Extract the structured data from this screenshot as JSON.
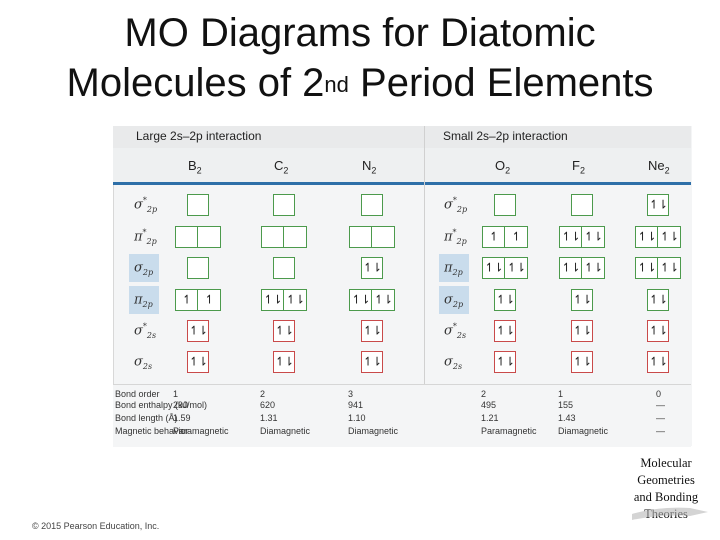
{
  "title": {
    "line1": "MO Diagrams for Diatomic",
    "line2_pre": "Molecules of 2",
    "line2_sup": "nd",
    "line2_post": " Period Elements"
  },
  "sections": {
    "large": "Large 2s–2p interaction",
    "small": "Small 2s–2p interaction"
  },
  "molecules": [
    {
      "base": "B",
      "sub": "2"
    },
    {
      "base": "C",
      "sub": "2"
    },
    {
      "base": "N",
      "sub": "2"
    },
    {
      "base": "O",
      "sub": "2"
    },
    {
      "base": "F",
      "sub": "2"
    },
    {
      "base": "Ne",
      "sub": "2"
    }
  ],
  "orbitals_left": [
    {
      "sym": "σ",
      "star": "*",
      "sub": "2p"
    },
    {
      "sym": "π",
      "star": "*",
      "sub": "2p"
    },
    {
      "sym": "σ",
      "star": "",
      "sub": "2p"
    },
    {
      "sym": "π",
      "star": "",
      "sub": "2p"
    },
    {
      "sym": "σ",
      "star": "*",
      "sub": "2s"
    },
    {
      "sym": "σ",
      "star": "",
      "sub": "2s"
    }
  ],
  "orbitals_right": [
    {
      "sym": "σ",
      "star": "*",
      "sub": "2p"
    },
    {
      "sym": "π",
      "star": "*",
      "sub": "2p"
    },
    {
      "sym": "π",
      "star": "",
      "sub": "2p"
    },
    {
      "sym": "σ",
      "star": "",
      "sub": "2p"
    },
    {
      "sym": "σ",
      "star": "*",
      "sub": "2s"
    },
    {
      "sym": "σ",
      "star": "",
      "sub": "2s"
    }
  ],
  "occupancy": {
    "B2": [
      "",
      [
        "",
        ""
      ],
      "",
      [
        "↿",
        "↿"
      ],
      "↿⇂",
      "↿⇂"
    ],
    "C2": [
      "",
      [
        "",
        ""
      ],
      "",
      [
        "↿⇂",
        "↿⇂"
      ],
      "↿⇂",
      "↿⇂"
    ],
    "N2": [
      "",
      [
        "",
        ""
      ],
      "↿⇂",
      [
        "↿⇂",
        "↿⇂"
      ],
      "↿⇂",
      "↿⇂"
    ],
    "O2": [
      "",
      [
        "↿",
        "↿"
      ],
      [
        "↿⇂",
        "↿⇂"
      ],
      "↿⇂",
      "↿⇂",
      "↿⇂"
    ],
    "F2": [
      "",
      [
        "↿⇂",
        "↿⇂"
      ],
      [
        "↿⇂",
        "↿⇂"
      ],
      "↿⇂",
      "↿⇂",
      "↿⇂"
    ],
    "Ne2": [
      "↿⇂",
      [
        "↿⇂",
        "↿⇂"
      ],
      [
        "↿⇂",
        "↿⇂"
      ],
      "↿⇂",
      "↿⇂",
      "↿⇂"
    ]
  },
  "properties": {
    "labels": [
      "Bond order",
      "Bond enthalpy (kJ/mol)",
      "Bond length (Å)",
      "Magnetic behavior"
    ],
    "values": {
      "B2": [
        "1",
        "290",
        "1.59",
        "Paramagnetic"
      ],
      "C2": [
        "2",
        "620",
        "1.31",
        "Diamagnetic"
      ],
      "N2": [
        "3",
        "941",
        "1.10",
        "Diamagnetic"
      ],
      "O2": [
        "2",
        "495",
        "1.21",
        "Paramagnetic"
      ],
      "F2": [
        "1",
        "155",
        "1.43",
        "Diamagnetic"
      ],
      "Ne2": [
        "0",
        "—",
        "—",
        "—"
      ]
    }
  },
  "copyright": "© 2015 Pearson Education, Inc.",
  "side_label": [
    "Molecular",
    "Geometries",
    "and Bonding",
    "Theories"
  ],
  "colors": {
    "accent_blue": "#2e6fa8",
    "box_green": "#4c9a4c",
    "box_red": "#c94a4a",
    "highlight": "#c9dcec"
  }
}
